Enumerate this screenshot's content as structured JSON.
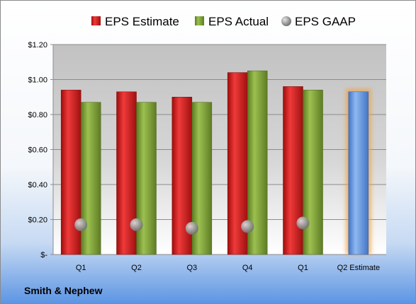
{
  "company": "Smith & Nephew",
  "chart_data": {
    "type": "bar",
    "categories": [
      "Q1",
      "Q2",
      "Q3",
      "Q4",
      "Q1",
      "Q2 Estimate"
    ],
    "ylim": [
      0,
      1.2
    ],
    "yticks": [
      0,
      0.2,
      0.4,
      0.6,
      0.8,
      1.0,
      1.2
    ],
    "ytick_labels": [
      "$-",
      "$0.20",
      "$0.40",
      "$0.60",
      "$0.80",
      "$1.00",
      "$1.20"
    ],
    "legend_position": "top",
    "grid": true,
    "series": [
      {
        "name": "EPS Estimate",
        "type": "bar",
        "color": "#d42020",
        "values": [
          0.94,
          0.93,
          0.9,
          1.04,
          0.96,
          null
        ]
      },
      {
        "name": "EPS Actual",
        "type": "bar",
        "color": "#7fa038",
        "values": [
          0.87,
          0.87,
          0.87,
          1.05,
          0.94,
          null
        ]
      },
      {
        "name": "EPS GAAP",
        "type": "scatter",
        "color": "#a0a0a0",
        "values": [
          0.17,
          0.17,
          0.15,
          0.16,
          0.18,
          null
        ]
      },
      {
        "name": "",
        "type": "bar",
        "color": "#6a9ce0",
        "highlight": "#f0a040",
        "values": [
          null,
          null,
          null,
          null,
          null,
          0.93
        ]
      }
    ]
  }
}
